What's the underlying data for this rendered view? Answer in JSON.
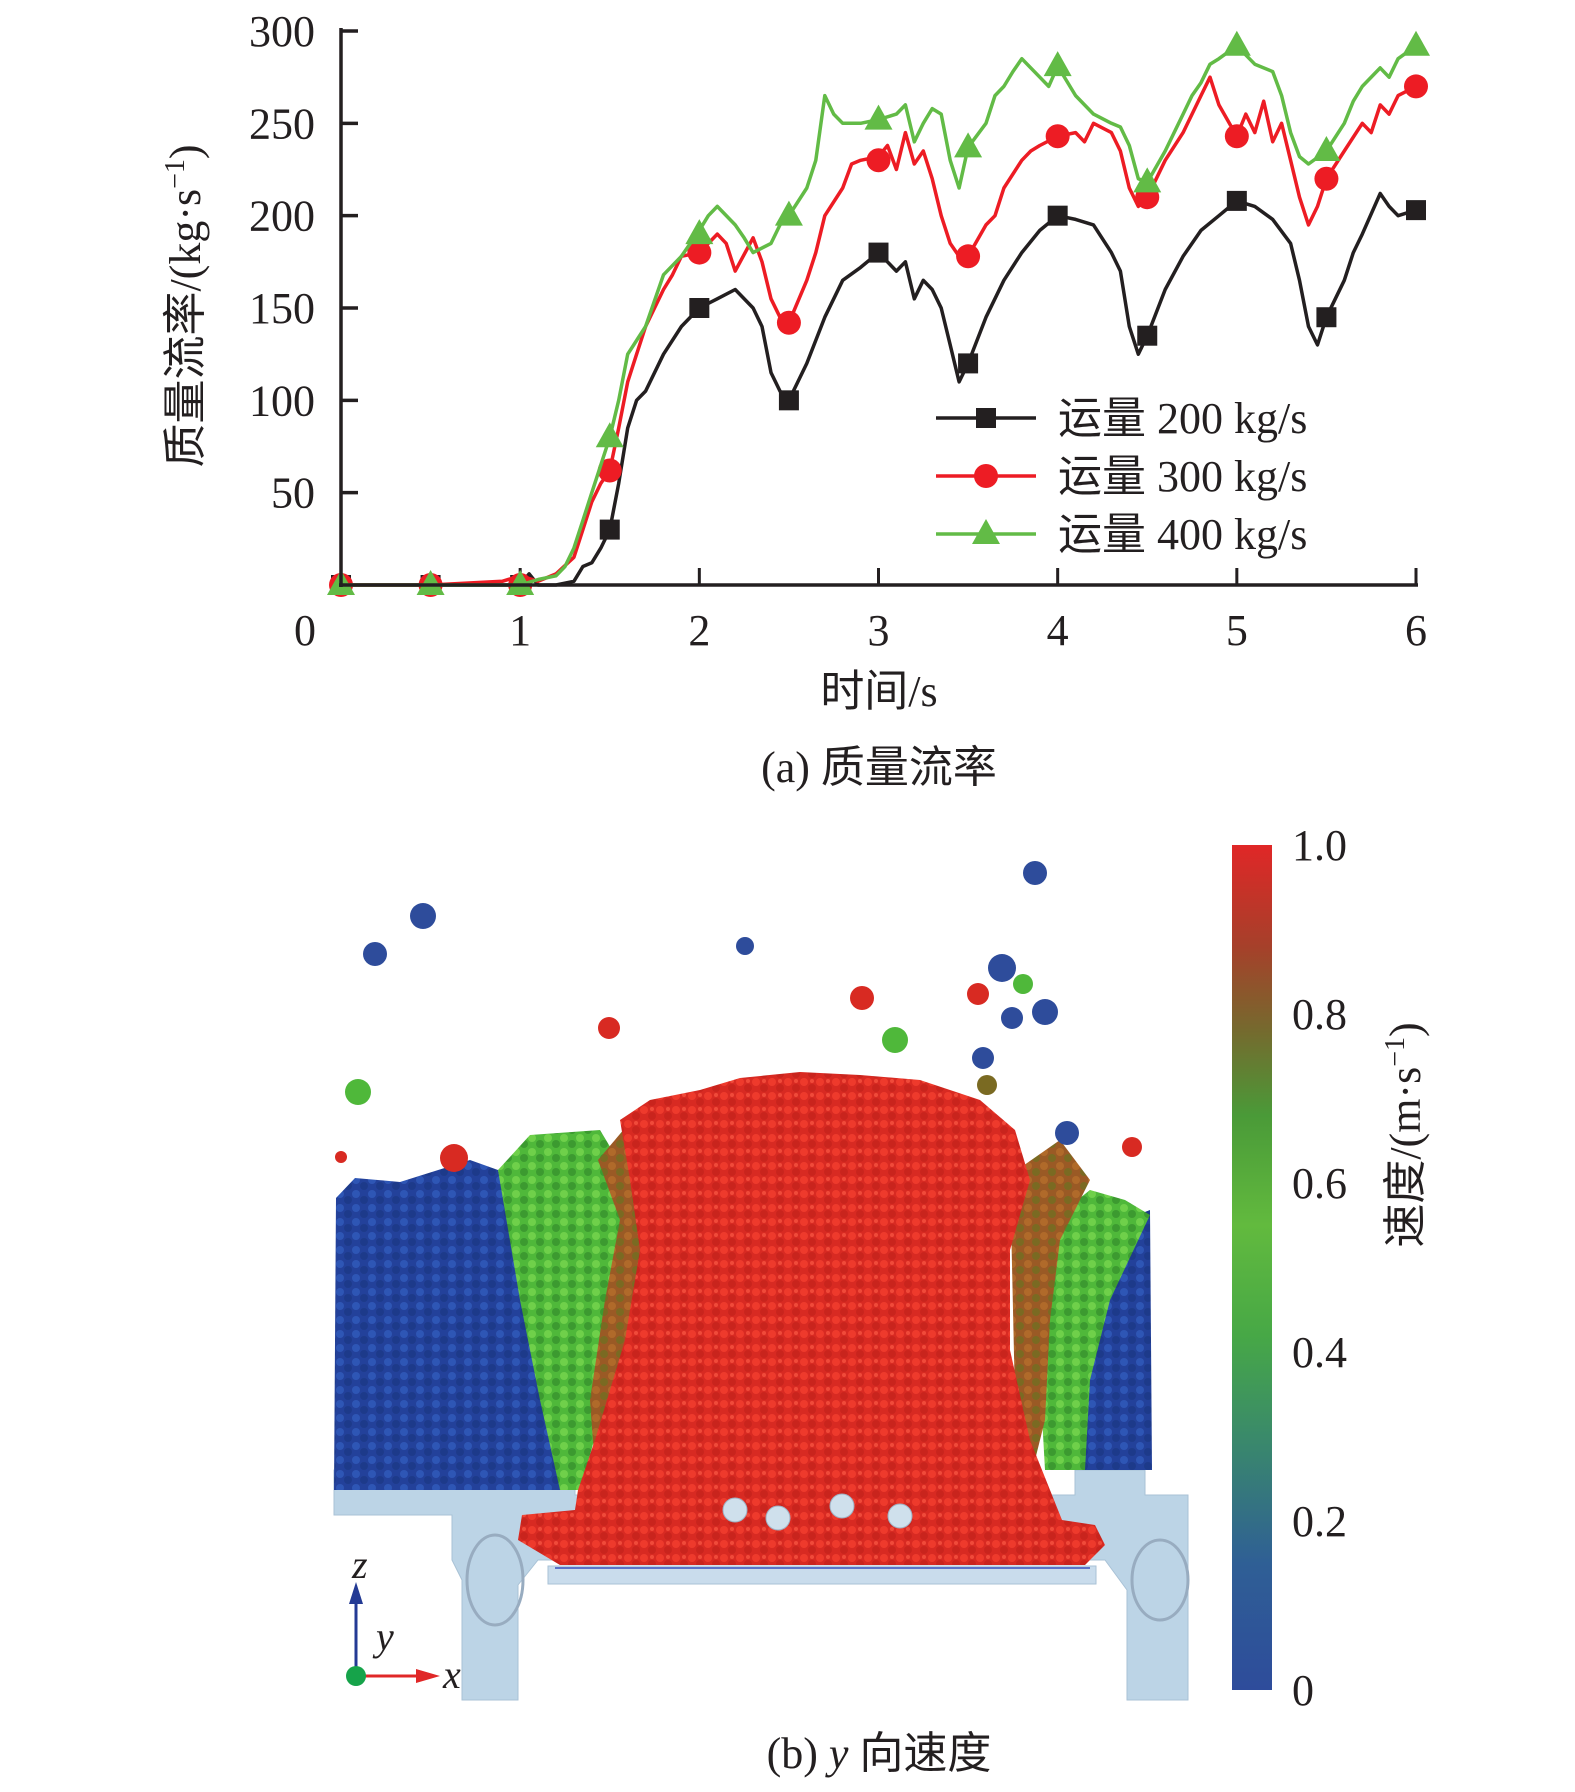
{
  "chart_data": [
    {
      "type": "line",
      "panel_caption": "(a) 质量流率",
      "title": "",
      "xlabel": "时间/s",
      "ylabel": "质量流率/(kg·s⁻¹)",
      "xlim": [
        0,
        6
      ],
      "ylim": [
        0,
        300
      ],
      "x_ticks": [
        0,
        1,
        2,
        3,
        4,
        5,
        6
      ],
      "x_tick_labels": [
        "0",
        "1",
        "2",
        "3",
        "4",
        "5",
        "6"
      ],
      "y_ticks": [
        50,
        100,
        150,
        200,
        250,
        300
      ],
      "y_tick_labels": [
        "50",
        "100",
        "150",
        "200",
        "250",
        "300"
      ],
      "grid": false,
      "legend_position": "bottom-right",
      "series": [
        {
          "name": "运量 200 kg/s",
          "color": "#231f20",
          "marker": "square",
          "x": [
            0,
            0.5,
            1.0,
            1.05,
            1.1,
            1.2,
            1.3,
            1.35,
            1.4,
            1.45,
            1.5,
            1.55,
            1.6,
            1.65,
            1.7,
            1.8,
            1.9,
            2.0,
            2.1,
            2.2,
            2.3,
            2.35,
            2.4,
            2.45,
            2.5,
            2.6,
            2.7,
            2.8,
            2.9,
            3.0,
            3.1,
            3.15,
            3.2,
            3.25,
            3.3,
            3.35,
            3.4,
            3.45,
            3.5,
            3.6,
            3.7,
            3.8,
            3.9,
            4.0,
            4.1,
            4.2,
            4.3,
            4.35,
            4.4,
            4.45,
            4.5,
            4.6,
            4.7,
            4.8,
            4.9,
            5.0,
            5.1,
            5.2,
            5.3,
            5.35,
            5.4,
            5.45,
            5.5,
            5.6,
            5.65,
            5.7,
            5.8,
            5.85,
            5.9,
            6.0
          ],
          "y": [
            0,
            0,
            0,
            6,
            0,
            0,
            2,
            10,
            12,
            20,
            30,
            55,
            85,
            100,
            105,
            125,
            140,
            150,
            155,
            160,
            150,
            140,
            115,
            105,
            100,
            120,
            145,
            165,
            172,
            180,
            170,
            175,
            155,
            165,
            160,
            150,
            130,
            110,
            120,
            145,
            165,
            180,
            192,
            200,
            198,
            195,
            180,
            170,
            140,
            125,
            135,
            160,
            178,
            192,
            200,
            208,
            205,
            198,
            185,
            165,
            140,
            130,
            145,
            165,
            180,
            190,
            212,
            205,
            200,
            203
          ],
          "marker_x": [
            0,
            0.5,
            1.0,
            1.5,
            2.0,
            2.5,
            3.0,
            3.5,
            4.0,
            4.5,
            5.0,
            5.5,
            6.0
          ],
          "marker_y": [
            0,
            0,
            0,
            30,
            150,
            100,
            180,
            120,
            200,
            135,
            208,
            145,
            203
          ]
        },
        {
          "name": "运量 300 kg/s",
          "color": "#ed1c24",
          "marker": "circle",
          "x": [
            0,
            0.5,
            0.9,
            1.0,
            1.1,
            1.2,
            1.3,
            1.35,
            1.4,
            1.45,
            1.5,
            1.55,
            1.6,
            1.65,
            1.7,
            1.8,
            1.85,
            1.9,
            2.0,
            2.1,
            2.15,
            2.2,
            2.3,
            2.35,
            2.4,
            2.45,
            2.5,
            2.6,
            2.65,
            2.7,
            2.8,
            2.85,
            2.9,
            3.0,
            3.05,
            3.1,
            3.15,
            3.2,
            3.25,
            3.3,
            3.35,
            3.4,
            3.45,
            3.5,
            3.6,
            3.65,
            3.7,
            3.8,
            3.85,
            3.9,
            4.0,
            4.1,
            4.15,
            4.2,
            4.3,
            4.35,
            4.4,
            4.45,
            4.5,
            4.6,
            4.7,
            4.8,
            4.85,
            4.9,
            5.0,
            5.05,
            5.1,
            5.15,
            5.2,
            5.25,
            5.3,
            5.35,
            5.4,
            5.45,
            5.5,
            5.6,
            5.7,
            5.75,
            5.8,
            5.85,
            5.9,
            6.0
          ],
          "y": [
            0,
            0,
            2,
            5,
            2,
            6,
            15,
            30,
            45,
            55,
            62,
            85,
            110,
            125,
            140,
            160,
            168,
            178,
            180,
            190,
            185,
            170,
            188,
            175,
            155,
            145,
            142,
            165,
            180,
            200,
            215,
            228,
            230,
            232,
            238,
            225,
            245,
            228,
            235,
            220,
            200,
            185,
            178,
            178,
            195,
            200,
            215,
            230,
            235,
            238,
            243,
            245,
            240,
            250,
            245,
            235,
            215,
            205,
            210,
            230,
            245,
            265,
            275,
            260,
            243,
            255,
            245,
            262,
            240,
            250,
            230,
            210,
            195,
            205,
            220,
            235,
            250,
            245,
            260,
            255,
            265,
            270
          ],
          "marker_x": [
            0,
            0.5,
            1.0,
            1.5,
            2.0,
            2.5,
            3.0,
            3.5,
            4.0,
            4.5,
            5.0,
            5.5,
            6.0
          ],
          "marker_y": [
            0,
            0,
            0,
            62,
            180,
            142,
            230,
            178,
            243,
            210,
            243,
            220,
            270
          ]
        },
        {
          "name": "运量 400 kg/s",
          "color": "#62bb46",
          "marker": "triangle",
          "x": [
            0,
            0.5,
            1.0,
            1.1,
            1.2,
            1.25,
            1.3,
            1.35,
            1.4,
            1.45,
            1.5,
            1.55,
            1.6,
            1.7,
            1.8,
            1.9,
            2.0,
            2.05,
            2.1,
            2.2,
            2.25,
            2.3,
            2.4,
            2.45,
            2.5,
            2.6,
            2.65,
            2.7,
            2.75,
            2.8,
            2.9,
            3.0,
            3.1,
            3.15,
            3.2,
            3.25,
            3.3,
            3.35,
            3.4,
            3.45,
            3.5,
            3.6,
            3.65,
            3.7,
            3.75,
            3.8,
            3.9,
            3.95,
            4.0,
            4.1,
            4.2,
            4.3,
            4.35,
            4.4,
            4.45,
            4.5,
            4.6,
            4.7,
            4.75,
            4.8,
            4.85,
            4.9,
            5.0,
            5.1,
            5.2,
            5.25,
            5.3,
            5.35,
            5.4,
            5.5,
            5.6,
            5.65,
            5.7,
            5.8,
            5.85,
            5.9,
            6.0
          ],
          "y": [
            0,
            0,
            0,
            3,
            5,
            10,
            20,
            35,
            50,
            65,
            80,
            100,
            125,
            140,
            168,
            178,
            192,
            200,
            205,
            195,
            188,
            180,
            185,
            195,
            200,
            215,
            230,
            265,
            255,
            250,
            250,
            252,
            255,
            260,
            240,
            250,
            258,
            255,
            230,
            215,
            237,
            250,
            265,
            270,
            278,
            285,
            275,
            270,
            281,
            265,
            255,
            250,
            248,
            238,
            220,
            218,
            235,
            255,
            265,
            272,
            282,
            285,
            292,
            282,
            278,
            265,
            245,
            232,
            228,
            235,
            250,
            262,
            270,
            280,
            275,
            285,
            292
          ],
          "marker_x": [
            0,
            0.5,
            1.0,
            1.5,
            2.0,
            2.5,
            3.0,
            3.5,
            4.0,
            4.5,
            5.0,
            5.5,
            6.0
          ],
          "marker_y": [
            0,
            0,
            0,
            80,
            190,
            200,
            252,
            237,
            281,
            218,
            292,
            235,
            292
          ]
        }
      ]
    },
    {
      "type": "heatmap",
      "panel_caption": "(b) y 向速度",
      "description": "DEM particle simulation snapshot colored by y-direction velocity",
      "colorbar": {
        "label": "速度/(m·s⁻¹)",
        "range": [
          0,
          1.0
        ],
        "ticks": [
          0,
          0.2,
          0.4,
          0.6,
          0.8,
          1.0
        ],
        "tick_labels": [
          "0",
          "0.2",
          "0.4",
          "0.6",
          "0.8",
          "1.0"
        ],
        "colors": [
          "#2e4c9b",
          "#2f6a87",
          "#3fa04e",
          "#5cb83e",
          "#5c8a3a",
          "#8a5a2b",
          "#b83228",
          "#e02727"
        ]
      },
      "axes_triad": {
        "vertical": "z",
        "depth": "y",
        "horizontal": "x"
      }
    }
  ],
  "captions": {
    "a": "(a) 质量流率",
    "b_prefix": "(b) ",
    "b_italic": "y",
    "b_suffix": " 向速度"
  },
  "axis_text": {
    "ylabel_main": "质量流率/(kg·s",
    "ylabel_sup": "−1",
    "ylabel_end": ")",
    "xlabel": "时间/s",
    "cb_main": "速度/(m·s",
    "cb_sup": "−1",
    "cb_end": ")"
  },
  "triad": {
    "z": "z",
    "y": "y",
    "x": "x"
  }
}
